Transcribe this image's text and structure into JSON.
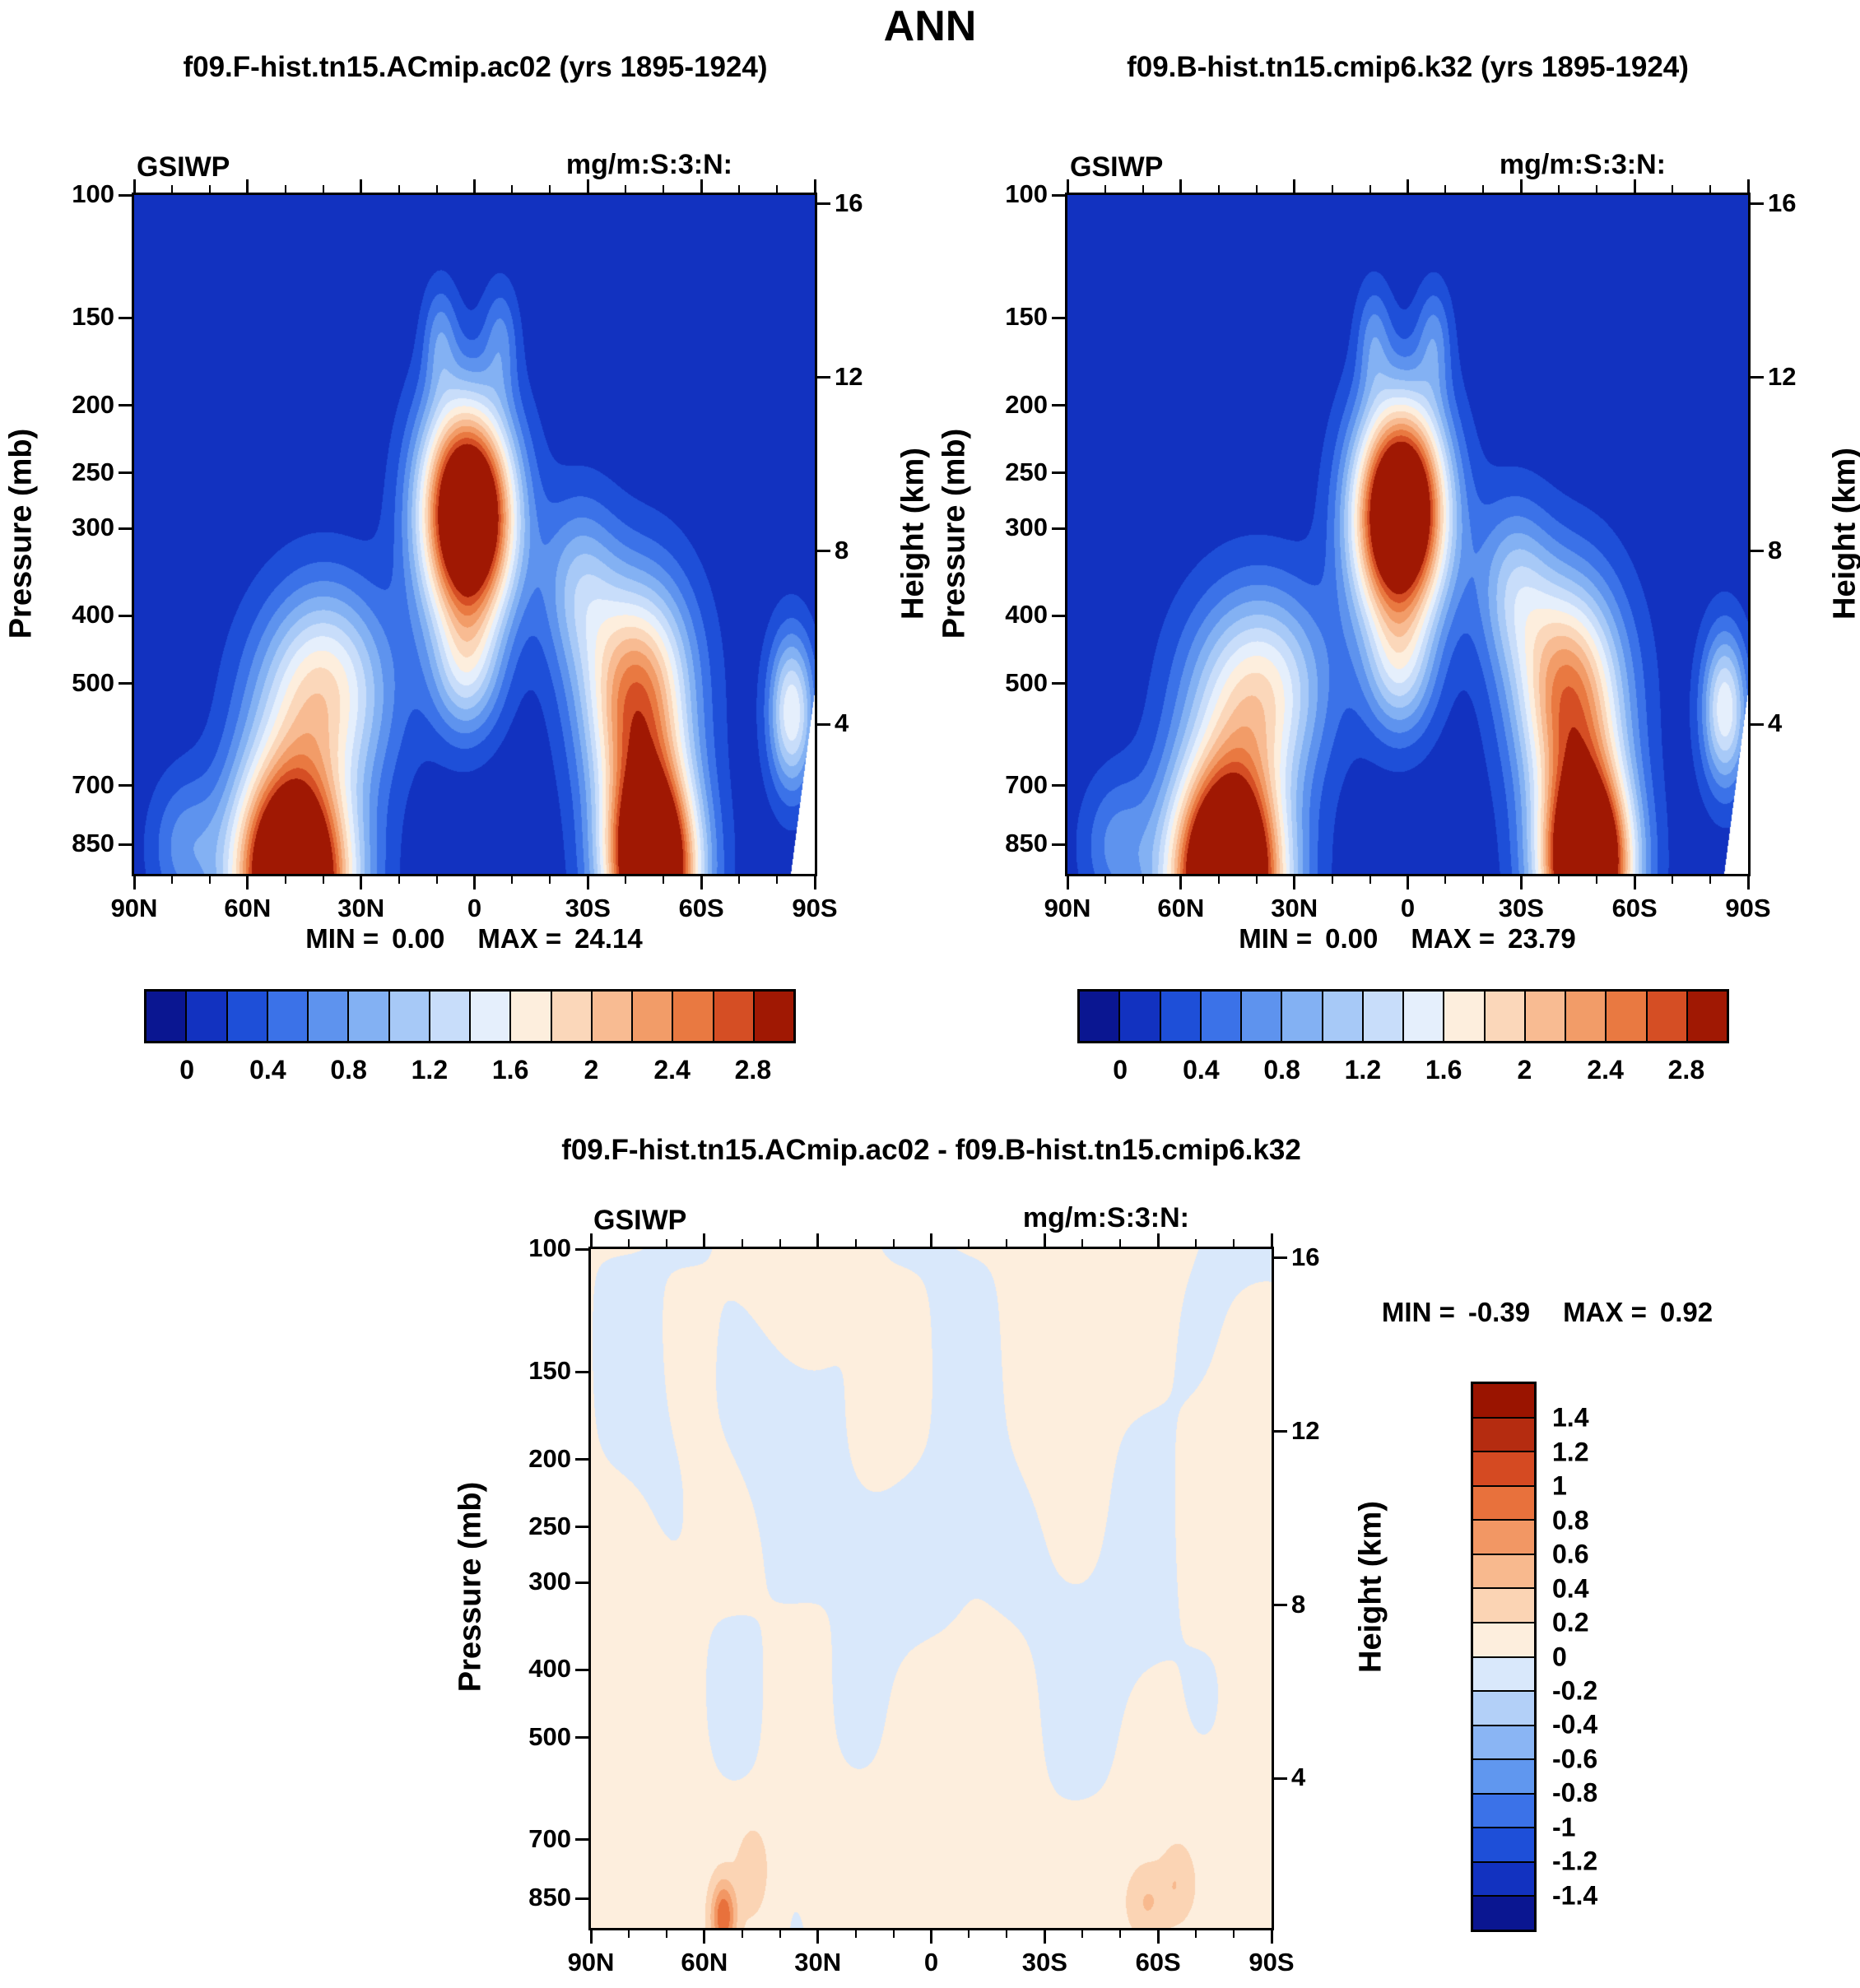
{
  "title": "ANN",
  "panels": [
    {
      "title": "f09.F-hist.tn15.ACmip.ac02 (yrs 1895-1924)",
      "field": "GSIWP",
      "units": "mg/m:S:3:N:",
      "min_label": "MIN =",
      "min_value": "0.00",
      "max_label": "MAX =",
      "max_value": "24.14",
      "colorbar_labels": [
        "0",
        "0.4",
        "0.8",
        "1.2",
        "1.6",
        "2",
        "2.4",
        "2.8"
      ]
    },
    {
      "title": "f09.B-hist.tn15.cmip6.k32 (yrs 1895-1924)",
      "field": "GSIWP",
      "units": "mg/m:S:3:N:",
      "min_label": "MIN =",
      "min_value": "0.00",
      "max_label": "MAX =",
      "max_value": "23.79",
      "colorbar_labels": [
        "0",
        "0.4",
        "0.8",
        "1.2",
        "1.6",
        "2",
        "2.4",
        "2.8"
      ]
    },
    {
      "title": "f09.F-hist.tn15.ACmip.ac02 - f09.B-hist.tn15.cmip6.k32",
      "field": "GSIWP",
      "units": "mg/m:S:3:N:",
      "min_label": "MIN =",
      "min_value": "-0.39",
      "max_label": "MAX =",
      "max_value": "0.92",
      "colorbar_labels": [
        "1.4",
        "1.2",
        "1",
        "0.8",
        "0.6",
        "0.4",
        "0.2",
        "0",
        "-0.2",
        "-0.4",
        "-0.6",
        "-0.8",
        "-1",
        "-1.2",
        "-1.4"
      ]
    }
  ],
  "axes": {
    "pressure_label": "Pressure (mb)",
    "pressure_ticks": [
      "100",
      "150",
      "200",
      "250",
      "300",
      "400",
      "500",
      "700",
      "850"
    ],
    "height_label": "Height (km)",
    "height_ticks": [
      "16",
      "12",
      "8",
      "4"
    ],
    "lat_ticks": [
      "90N",
      "60N",
      "30N",
      "0",
      "30S",
      "60S",
      "90S"
    ]
  },
  "palette_main": [
    "#0a1691",
    "#1232c0",
    "#1e4fd8",
    "#3b72e8",
    "#5e93ee",
    "#83b1f3",
    "#a7c9f7",
    "#c8ddfa",
    "#e5effc",
    "#fdeedd",
    "#fbd7ba",
    "#f8bb92",
    "#f29c68",
    "#e97941",
    "#d54e24",
    "#a01803"
  ],
  "palette_diff": [
    "#0a1691",
    "#1232c0",
    "#1e4fd8",
    "#3b72e8",
    "#6097ef",
    "#8ab5f4",
    "#b3d0f8",
    "#d9e8fb",
    "#fdeedd",
    "#fbd4b4",
    "#f8b98e",
    "#f29764",
    "#e8713c",
    "#d54a22",
    "#b52c10",
    "#9a1400"
  ],
  "chart_data": [
    {
      "type": "heatmap",
      "title": "f09.F-hist.tn15.ACmip.ac02 (yrs 1895-1924)",
      "variable": "GSIWP",
      "units_string": "mg/m:S:3:N:",
      "min": 0.0,
      "max": 24.14,
      "x_axis": {
        "ticks": [
          "90N",
          "60N",
          "30N",
          "0",
          "30S",
          "60S",
          "90S"
        ],
        "range_deg": [
          90,
          -90
        ]
      },
      "y_axis_left": {
        "label": "Pressure (mb)",
        "ticks": [
          100,
          150,
          200,
          250,
          300,
          400,
          500,
          700,
          850
        ]
      },
      "y_axis_right": {
        "label": "Height (km)",
        "ticks": [
          16,
          12,
          8,
          4
        ]
      },
      "contour_levels": [
        0,
        0.2,
        0.4,
        0.6,
        0.8,
        1.0,
        1.2,
        1.4,
        1.6,
        1.8,
        2.0,
        2.2,
        2.4,
        2.6,
        2.8
      ],
      "colorbar_tick_labels": [
        0,
        0.4,
        0.8,
        1.2,
        1.6,
        2,
        2.4,
        2.8
      ],
      "legend_position": "horizontal-below",
      "features": [
        {
          "desc": "tropical upper-troposphere maximum",
          "lat": "15N-15S",
          "pressure_mb": "200-550",
          "value": ">2.8 (saturated dark red)"
        },
        {
          "desc": "NH midlatitude low-level storm-track maximum",
          "lat": "30N-65N",
          "pressure_mb": "450-925",
          "value": ">2.8"
        },
        {
          "desc": "SH midlatitude maximum",
          "lat": "25S-65S",
          "pressure_mb": "350-925",
          "value": ">2.8"
        },
        {
          "desc": "background upper levels and poles",
          "value": "0-0.2 (dark blue)"
        },
        {
          "desc": "white masked wedge (Antarctic topography)",
          "lat": "85S-90S",
          "pressure_mb": "550-925"
        }
      ]
    },
    {
      "type": "heatmap",
      "title": "f09.B-hist.tn15.cmip6.k32 (yrs 1895-1924)",
      "variable": "GSIWP",
      "units_string": "mg/m:S:3:N:",
      "min": 0.0,
      "max": 23.79,
      "x_axis": {
        "ticks": [
          "90N",
          "60N",
          "30N",
          "0",
          "30S",
          "60S",
          "90S"
        ],
        "range_deg": [
          90,
          -90
        ]
      },
      "y_axis_left": {
        "label": "Pressure (mb)",
        "ticks": [
          100,
          150,
          200,
          250,
          300,
          400,
          500,
          700,
          850
        ]
      },
      "y_axis_right": {
        "label": "Height (km)",
        "ticks": [
          16,
          12,
          8,
          4
        ]
      },
      "contour_levels": [
        0,
        0.2,
        0.4,
        0.6,
        0.8,
        1.0,
        1.2,
        1.4,
        1.6,
        1.8,
        2.0,
        2.2,
        2.4,
        2.6,
        2.8
      ],
      "colorbar_tick_labels": [
        0,
        0.4,
        0.8,
        1.2,
        1.6,
        2,
        2.4,
        2.8
      ],
      "legend_position": "horizontal-below",
      "features": [
        {
          "desc": "pattern nearly identical to first panel",
          "value": "max 23.79 vs 24.14"
        }
      ]
    },
    {
      "type": "heatmap",
      "title": "f09.F-hist.tn15.ACmip.ac02 - f09.B-hist.tn15.cmip6.k32",
      "variable": "GSIWP difference",
      "units_string": "mg/m:S:3:N:",
      "min": -0.39,
      "max": 0.92,
      "x_axis": {
        "ticks": [
          "90N",
          "60N",
          "30N",
          "0",
          "30S",
          "60S",
          "90S"
        ],
        "range_deg": [
          90,
          -90
        ]
      },
      "y_axis_left": {
        "label": "Pressure (mb)",
        "ticks": [
          100,
          150,
          200,
          250,
          300,
          400,
          500,
          700,
          850
        ]
      },
      "y_axis_right": {
        "label": "Height (km)",
        "ticks": [
          16,
          12,
          8,
          4
        ]
      },
      "contour_levels": [
        -1.4,
        -1.2,
        -1,
        -0.8,
        -0.6,
        -0.4,
        -0.2,
        0,
        0.2,
        0.4,
        0.6,
        0.8,
        1,
        1.2,
        1.4
      ],
      "colorbar_tick_labels": [
        1.4,
        1.2,
        1,
        0.8,
        0.6,
        0.4,
        0.2,
        0,
        -0.2,
        -0.4,
        -0.6,
        -0.8,
        -1,
        -1.2,
        -1.4
      ],
      "legend_position": "vertical-right",
      "features": [
        {
          "desc": "weak mottled differences, mostly within ±0.2 (pale peach / pale blue)"
        },
        {
          "desc": "positive spot near 55N, ~850 mb",
          "value": "~0.9 (red)"
        },
        {
          "desc": "positive patches near 55S-65S, 700-850 mb",
          "value": "0.2-0.5"
        },
        {
          "desc": "slight negative patches in upper troposphere 150-300 mb",
          "value": "-0.2 to 0"
        }
      ]
    }
  ]
}
